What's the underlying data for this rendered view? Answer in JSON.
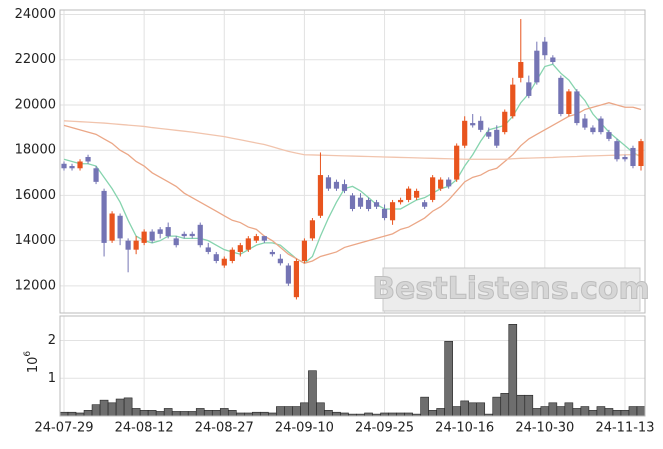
{
  "chart_data": [
    {
      "type": "candlestick",
      "open": [
        17400,
        17300,
        17200,
        17700,
        17200,
        16200,
        14000,
        15100,
        14000,
        13600,
        13900,
        14400,
        14500,
        14600,
        14100,
        14300,
        14300,
        14700,
        13700,
        13400,
        12900,
        13100,
        13500,
        13600,
        14000,
        14200,
        13500,
        13200,
        12900,
        11500,
        13100,
        14100,
        15100,
        16800,
        16600,
        16500,
        16000,
        15900,
        15800,
        15700,
        15400,
        14900,
        15700,
        15800,
        15900,
        15700,
        15800,
        16300,
        16700,
        16700,
        18200,
        19200,
        19300,
        18800,
        18900,
        18800,
        19500,
        21200,
        21000,
        22400,
        22800,
        22100,
        21200,
        19600,
        20600,
        19400,
        19000,
        19400,
        18800,
        18400,
        17700,
        18100,
        17300
      ],
      "high": [
        17500,
        17400,
        17600,
        17800,
        17300,
        16300,
        15300,
        15200,
        14100,
        14200,
        14500,
        14500,
        14600,
        14800,
        14200,
        14400,
        14400,
        14800,
        13900,
        13500,
        13300,
        13700,
        13900,
        14200,
        14300,
        14200,
        13600,
        13400,
        13000,
        13200,
        14100,
        15000,
        17900,
        16900,
        16700,
        16700,
        16100,
        16100,
        15900,
        15800,
        15600,
        15800,
        15900,
        16400,
        16300,
        15800,
        16900,
        16800,
        16800,
        18300,
        19500,
        19600,
        19500,
        19000,
        19100,
        19800,
        21200,
        23800,
        21300,
        22800,
        23000,
        22200,
        21300,
        20700,
        20700,
        19600,
        19100,
        19500,
        18900,
        18500,
        17800,
        18200,
        18500
      ],
      "low": [
        17100,
        17100,
        17100,
        17400,
        16500,
        13300,
        13900,
        13800,
        12600,
        13400,
        13800,
        13900,
        14100,
        14100,
        13700,
        14100,
        14100,
        13700,
        13400,
        13000,
        12800,
        13000,
        13300,
        13500,
        13900,
        13900,
        13300,
        12900,
        12000,
        11400,
        13000,
        14000,
        15000,
        16200,
        16200,
        16100,
        15300,
        15400,
        15300,
        15400,
        14900,
        14700,
        15600,
        15700,
        15800,
        15400,
        15700,
        16200,
        16300,
        16600,
        18100,
        19000,
        18800,
        18500,
        18100,
        18700,
        19400,
        21000,
        20300,
        20900,
        22000,
        21800,
        19500,
        19500,
        19100,
        18900,
        18700,
        18700,
        18400,
        17500,
        17500,
        17200,
        17100
      ],
      "close": [
        17200,
        17200,
        17500,
        17500,
        16600,
        13900,
        15200,
        14100,
        13600,
        14000,
        14400,
        14000,
        14300,
        14200,
        13800,
        14200,
        14200,
        13800,
        13500,
        13100,
        13200,
        13600,
        13800,
        14100,
        14200,
        14000,
        13400,
        13000,
        12100,
        13100,
        14000,
        14900,
        16900,
        16300,
        16300,
        16200,
        15400,
        15500,
        15400,
        15500,
        15000,
        15700,
        15800,
        16300,
        16200,
        15500,
        16800,
        16700,
        16400,
        18200,
        19300,
        19100,
        18900,
        18600,
        18200,
        19700,
        20900,
        21900,
        20400,
        21000,
        22200,
        21900,
        19600,
        20600,
        19200,
        19000,
        18800,
        18800,
        18500,
        17600,
        17600,
        17300,
        18400
      ],
      "up_color": "#e8541e",
      "down_color": "#7474b4",
      "lines": [
        {
          "color": "#86d4ae",
          "values": [
            17600,
            17500,
            17400,
            17400,
            17300,
            16800,
            16300,
            15700,
            14900,
            14200,
            14000,
            13900,
            14000,
            14200,
            14200,
            14100,
            14100,
            14100,
            14000,
            13800,
            13600,
            13500,
            13400,
            13600,
            13800,
            13900,
            13900,
            13800,
            13500,
            13200,
            13000,
            13300,
            14200,
            15000,
            15700,
            16300,
            16400,
            16200,
            15900,
            15600,
            15400,
            15400,
            15400,
            15600,
            15800,
            15900,
            16100,
            16300,
            16400,
            16700,
            17300,
            17800,
            18400,
            18900,
            19000,
            19100,
            19500,
            20100,
            20500,
            21100,
            21700,
            21800,
            21400,
            21100,
            20600,
            20200,
            19600,
            19200,
            18800,
            18500,
            18200,
            17900,
            17700
          ]
        },
        {
          "color": "#eba787",
          "values": [
            19100,
            19000,
            18900,
            18800,
            18700,
            18500,
            18300,
            18000,
            17800,
            17500,
            17300,
            17000,
            16800,
            16600,
            16400,
            16100,
            15900,
            15700,
            15500,
            15300,
            15100,
            14900,
            14800,
            14600,
            14500,
            14200,
            14000,
            13700,
            13400,
            13200,
            13000,
            13100,
            13300,
            13400,
            13500,
            13700,
            13800,
            13900,
            14000,
            14100,
            14200,
            14300,
            14500,
            14600,
            14800,
            15000,
            15300,
            15500,
            15800,
            16200,
            16600,
            16800,
            16900,
            17100,
            17200,
            17500,
            17800,
            18200,
            18500,
            18700,
            18900,
            19100,
            19300,
            19500,
            19600,
            19800,
            19900,
            20000,
            20100,
            20000,
            19900,
            19900,
            19800
          ]
        },
        {
          "color": "#f1c4ad",
          "values": [
            19300,
            19280,
            19260,
            19240,
            19220,
            19200,
            19170,
            19140,
            19110,
            19080,
            19050,
            19000,
            18960,
            18920,
            18880,
            18840,
            18800,
            18750,
            18700,
            18650,
            18600,
            18530,
            18460,
            18390,
            18320,
            18250,
            18150,
            18050,
            17950,
            17870,
            17800,
            17790,
            17780,
            17770,
            17760,
            17750,
            17740,
            17730,
            17720,
            17710,
            17700,
            17690,
            17680,
            17670,
            17660,
            17650,
            17640,
            17630,
            17620,
            17610,
            17600,
            17600,
            17600,
            17600,
            17600,
            17600,
            17620,
            17640,
            17650,
            17660,
            17670,
            17680,
            17700,
            17710,
            17720,
            17740,
            17750,
            17760,
            17770,
            17780,
            17800,
            17800,
            17800
          ]
        }
      ],
      "ylim": [
        10800,
        24200
      ],
      "yticks": [
        12000,
        14000,
        16000,
        18000,
        20000,
        22000,
        24000
      ],
      "grid": true,
      "watermark": "BestListens.com"
    },
    {
      "type": "bar",
      "categories": [
        "24-07-29",
        null,
        null,
        null,
        null,
        null,
        null,
        null,
        null,
        null,
        "24-08-12",
        null,
        null,
        null,
        null,
        null,
        null,
        null,
        null,
        null,
        "24-08-27",
        null,
        null,
        null,
        null,
        null,
        null,
        null,
        null,
        null,
        "24-09-10",
        null,
        null,
        null,
        null,
        null,
        null,
        null,
        null,
        null,
        "24-09-25",
        null,
        null,
        null,
        null,
        null,
        null,
        null,
        null,
        null,
        "24-10-16",
        null,
        null,
        null,
        null,
        null,
        null,
        null,
        null,
        null,
        "24-10-30",
        null,
        null,
        null,
        null,
        null,
        null,
        null,
        null,
        null,
        "24-11-13",
        null,
        null
      ],
      "values": [
        0.1,
        0.1,
        0.08,
        0.15,
        0.3,
        0.42,
        0.35,
        0.45,
        0.48,
        0.2,
        0.15,
        0.15,
        0.12,
        0.2,
        0.12,
        0.12,
        0.12,
        0.2,
        0.15,
        0.15,
        0.2,
        0.15,
        0.08,
        0.08,
        0.1,
        0.1,
        0.08,
        0.25,
        0.25,
        0.25,
        0.35,
        1.2,
        0.35,
        0.15,
        0.1,
        0.08,
        0.05,
        0.05,
        0.08,
        0.05,
        0.08,
        0.08,
        0.08,
        0.08,
        0.05,
        0.5,
        0.15,
        0.2,
        1.98,
        0.25,
        0.4,
        0.35,
        0.35,
        0.05,
        0.5,
        0.6,
        2.43,
        0.55,
        0.55,
        0.2,
        0.25,
        0.35,
        0.25,
        0.35,
        0.2,
        0.25,
        0.15,
        0.25,
        0.2,
        0.15,
        0.15,
        0.25,
        0.25
      ],
      "color": "#6e6e6e",
      "ylim": [
        0,
        2.65
      ],
      "yticks": [
        1,
        2
      ],
      "grid": true,
      "axis_multiplier": {
        "base": "10",
        "exponent": "6"
      }
    }
  ]
}
